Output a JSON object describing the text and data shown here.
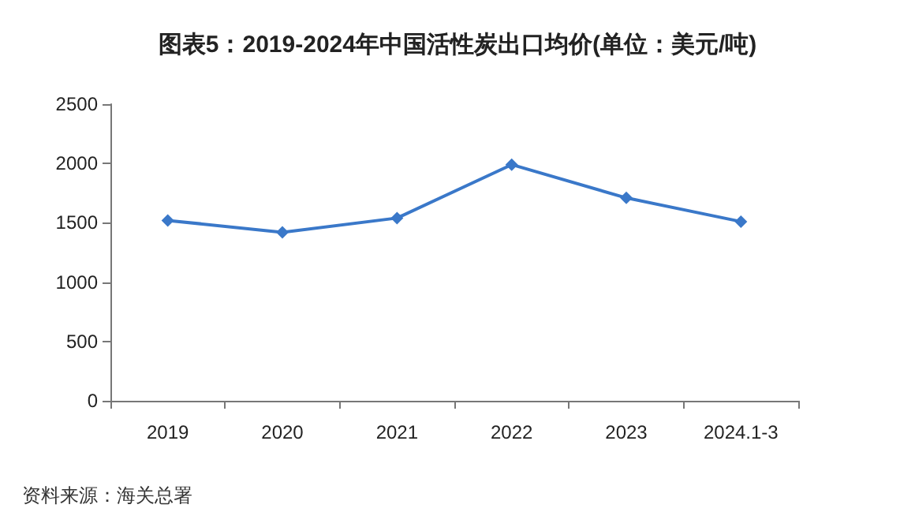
{
  "chart_data": {
    "type": "line",
    "title": "图表5：2019-2024年中国活性炭出口均价(单位：美元/吨)",
    "categories": [
      "2019",
      "2020",
      "2021",
      "2022",
      "2023",
      "2024.1-3"
    ],
    "series": [
      {
        "color": "#3a78c9",
        "values": [
          1520,
          1420,
          1540,
          1990,
          1710,
          1510
        ]
      }
    ],
    "ylim": [
      0,
      2500
    ],
    "yticks": [
      0,
      500,
      1000,
      1500,
      2000,
      2500
    ],
    "grid": false,
    "marker": "diamond",
    "line_style": "solid",
    "annotations": [
      "资料来源：海关总署"
    ]
  }
}
